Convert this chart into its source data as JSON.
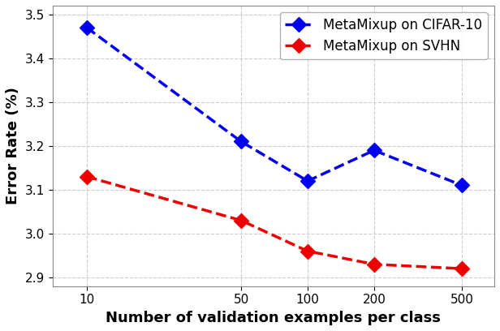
{
  "x": [
    10,
    50,
    100,
    200,
    500
  ],
  "cifar10_y": [
    3.47,
    3.21,
    3.12,
    3.19,
    3.11
  ],
  "svhn_y": [
    3.13,
    3.03,
    2.96,
    2.93,
    2.92
  ],
  "cifar10_label": "MetaMixup on CIFAR-10",
  "svhn_label": "MetaMixup on SVHN",
  "cifar10_color": "#0000ee",
  "svhn_color": "#ee0000",
  "xlabel": "Number of validation examples per class",
  "ylabel": "Error Rate (%)",
  "ylim": [
    2.88,
    3.52
  ],
  "yticks": [
    2.9,
    3.0,
    3.1,
    3.2,
    3.3,
    3.4,
    3.5
  ],
  "xticks": [
    10,
    50,
    100,
    200,
    500
  ],
  "marker": "D",
  "markersize": 9,
  "linewidth": 2.5,
  "linestyle": "--",
  "legend_fontsize": 12,
  "axis_label_fontsize": 13,
  "tick_fontsize": 11,
  "background_color": "#ffffff",
  "grid_color": "#cccccc",
  "grid_linestyle": "--",
  "grid_linewidth": 0.8
}
